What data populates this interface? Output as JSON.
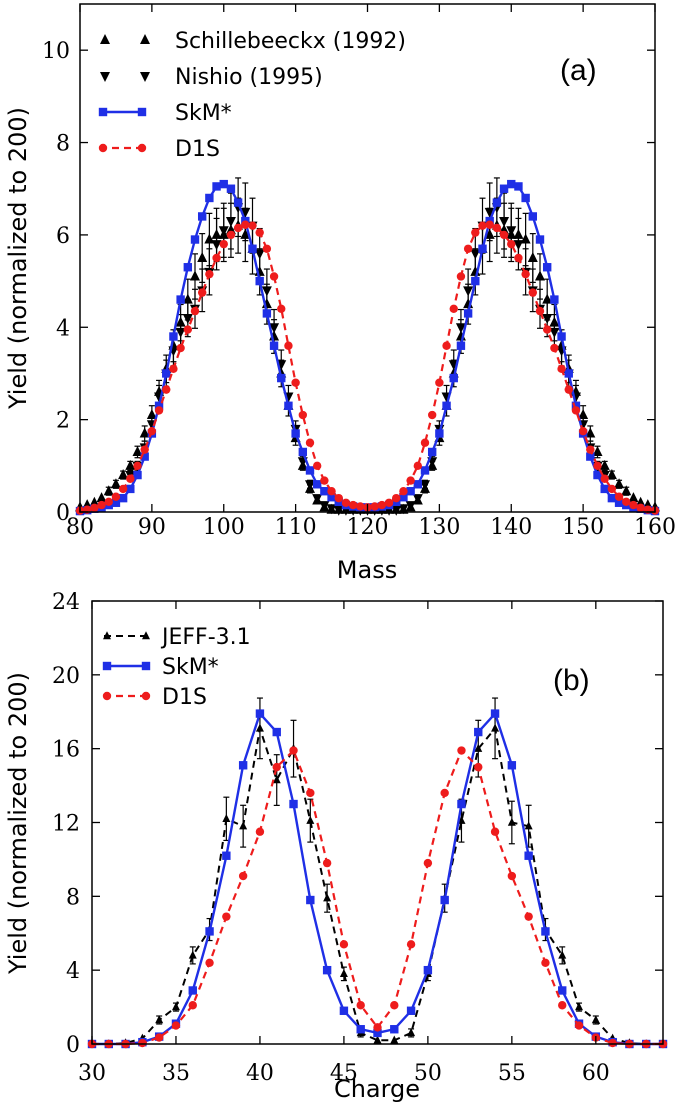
{
  "chart_data": [
    {
      "type": "line",
      "panel_label": "(a)",
      "xlabel": "Mass",
      "ylabel": "Yield (normalized to 200)",
      "xlim": [
        80,
        160
      ],
      "ylim": [
        0,
        11
      ],
      "xticks": [
        80,
        90,
        100,
        110,
        120,
        130,
        140,
        150,
        160
      ],
      "yticks": [
        0,
        2,
        4,
        6,
        8,
        10
      ],
      "x": [
        80,
        81,
        82,
        83,
        84,
        85,
        86,
        87,
        88,
        89,
        90,
        91,
        92,
        93,
        94,
        95,
        96,
        97,
        98,
        99,
        100,
        101,
        102,
        103,
        104,
        105,
        106,
        107,
        108,
        109,
        110,
        111,
        112,
        113,
        114,
        115,
        116,
        117,
        118,
        119,
        120,
        121,
        122,
        123,
        124,
        125,
        126,
        127,
        128,
        129,
        130,
        131,
        132,
        133,
        134,
        135,
        136,
        137,
        138,
        139,
        140,
        141,
        142,
        143,
        144,
        145,
        146,
        147,
        148,
        149,
        150,
        151,
        152,
        153,
        154,
        155,
        156,
        157,
        158,
        159,
        160
      ],
      "series": [
        {
          "name": "Schillebeeckx (1992)",
          "style": "black-up-triangle",
          "values": [
            0.1,
            0.15,
            0.2,
            0.3,
            0.45,
            0.6,
            0.8,
            1.0,
            1.3,
            1.7,
            2.1,
            2.6,
            3.1,
            3.6,
            4.1,
            4.6,
            5.1,
            5.5,
            5.9,
            6.0,
            6.0,
            6.1,
            6.2,
            6.0,
            5.7,
            5.2,
            4.5,
            3.8,
            3.0,
            2.3,
            1.6,
            1.0,
            0.5,
            0.25,
            0.1,
            0.05,
            0.05,
            0.05,
            0.05,
            0.05,
            0.05,
            0.05,
            0.05,
            0.05,
            0.05,
            0.05,
            0.1,
            0.25,
            0.5,
            1.0,
            1.6,
            2.3,
            3.0,
            3.8,
            4.5,
            5.2,
            5.7,
            6.0,
            6.2,
            6.1,
            6.0,
            6.0,
            5.9,
            5.5,
            5.1,
            4.6,
            4.1,
            3.6,
            3.1,
            2.6,
            2.1,
            1.7,
            1.3,
            1.0,
            0.8,
            0.6,
            0.45,
            0.3,
            0.2,
            0.15,
            0.1
          ]
        },
        {
          "name": "Nishio (1995)",
          "style": "black-down-triangle",
          "values": [
            null,
            null,
            null,
            null,
            null,
            null,
            null,
            0.8,
            1.0,
            1.4,
            1.9,
            2.5,
            3.0,
            3.5,
            3.9,
            4.2,
            4.4,
            4.8,
            5.2,
            5.8,
            6.1,
            6.3,
            6.6,
            6.5,
            6.2,
            5.6,
            4.8,
            4.0,
            3.2,
            2.5,
            1.8,
            1.1,
            0.6,
            0.3,
            0.15,
            0.08,
            0.05,
            0.05,
            0.05,
            0.05,
            0.05,
            0.05,
            0.05,
            0.05,
            0.05,
            0.08,
            0.15,
            0.3,
            0.6,
            1.1,
            1.8,
            2.5,
            3.2,
            4.0,
            4.8,
            5.6,
            6.2,
            6.5,
            6.6,
            6.3,
            6.1,
            5.8,
            5.2,
            4.8,
            4.4,
            4.2,
            3.9,
            3.5,
            3.0,
            2.5,
            1.9,
            1.4,
            1.0,
            0.8,
            null,
            null,
            null,
            null,
            null,
            null,
            null
          ]
        },
        {
          "name": "SkM*",
          "style": "blue-solid-square",
          "values": [
            0.02,
            0.04,
            0.07,
            0.1,
            0.15,
            0.2,
            0.3,
            0.5,
            0.8,
            1.2,
            1.7,
            2.3,
            3.0,
            3.8,
            4.6,
            5.3,
            5.9,
            6.4,
            6.8,
            7.05,
            7.1,
            7.0,
            6.7,
            6.3,
            5.7,
            5.0,
            4.3,
            3.6,
            2.9,
            2.3,
            1.7,
            1.3,
            0.9,
            0.6,
            0.45,
            0.32,
            0.22,
            0.15,
            0.12,
            0.1,
            0.1,
            0.1,
            0.12,
            0.15,
            0.22,
            0.32,
            0.45,
            0.6,
            0.9,
            1.3,
            1.7,
            2.3,
            2.9,
            3.6,
            4.3,
            5.0,
            5.7,
            6.3,
            6.7,
            7.0,
            7.1,
            7.05,
            6.8,
            6.4,
            5.9,
            5.3,
            4.6,
            3.8,
            3.0,
            2.3,
            1.7,
            1.2,
            0.8,
            0.5,
            0.3,
            0.2,
            0.15,
            0.1,
            0.07,
            0.04,
            0.02
          ]
        },
        {
          "name": "D1S",
          "style": "red-dashed-circle",
          "values": [
            0.03,
            0.05,
            0.09,
            0.15,
            0.22,
            0.33,
            0.5,
            0.72,
            1.0,
            1.35,
            1.75,
            2.2,
            2.65,
            3.1,
            3.55,
            3.95,
            4.35,
            4.75,
            5.15,
            5.5,
            5.8,
            6.0,
            6.15,
            6.22,
            6.2,
            6.05,
            5.7,
            5.1,
            4.4,
            3.6,
            2.8,
            2.1,
            1.5,
            1.0,
            0.68,
            0.45,
            0.3,
            0.2,
            0.15,
            0.12,
            0.1,
            0.12,
            0.15,
            0.2,
            0.3,
            0.45,
            0.68,
            1.0,
            1.5,
            2.1,
            2.8,
            3.6,
            4.4,
            5.1,
            5.7,
            6.05,
            6.2,
            6.22,
            6.15,
            6.0,
            5.8,
            5.5,
            5.15,
            4.75,
            4.35,
            3.95,
            3.55,
            3.1,
            2.65,
            2.2,
            1.75,
            1.35,
            1.0,
            0.72,
            0.5,
            0.33,
            0.22,
            0.15,
            0.09,
            0.05,
            0.03
          ]
        }
      ]
    },
    {
      "type": "line",
      "panel_label": "(b)",
      "xlabel": "Charge",
      "ylabel": "Yield (normalized to 200)",
      "xlim": [
        30,
        64
      ],
      "ylim": [
        0,
        24
      ],
      "xticks": [
        30,
        35,
        40,
        45,
        50,
        55,
        60
      ],
      "yticks": [
        0,
        4,
        8,
        12,
        16,
        20,
        24
      ],
      "x": [
        30,
        31,
        32,
        33,
        34,
        35,
        36,
        37,
        38,
        39,
        40,
        41,
        42,
        43,
        44,
        45,
        46,
        47,
        48,
        49,
        50,
        51,
        52,
        53,
        54,
        55,
        56,
        57,
        58,
        59,
        60,
        61,
        62,
        63,
        64
      ],
      "series": [
        {
          "name": "JEFF-3.1",
          "style": "black-dashed-triangle",
          "values": [
            0,
            0,
            0.05,
            0.3,
            1.3,
            2.0,
            4.8,
            6.2,
            12.2,
            11.8,
            17.1,
            14.3,
            16.0,
            12.1,
            7.9,
            3.8,
            0.6,
            0.2,
            0.2,
            0.6,
            3.8,
            7.9,
            12.1,
            16.0,
            17.1,
            12.0,
            11.8,
            6.2,
            4.8,
            2.0,
            1.3,
            0.3,
            0.05,
            0,
            0
          ]
        },
        {
          "name": "SkM*",
          "style": "blue-solid-square",
          "values": [
            0,
            0,
            0,
            0.1,
            0.4,
            1.1,
            2.9,
            6.1,
            10.2,
            15.1,
            17.9,
            16.9,
            13.0,
            7.8,
            4.0,
            1.8,
            0.8,
            0.6,
            0.8,
            1.8,
            4.0,
            7.8,
            13.0,
            16.9,
            17.9,
            15.1,
            10.2,
            6.1,
            2.9,
            1.1,
            0.4,
            0.1,
            0,
            0,
            0
          ]
        },
        {
          "name": "D1S",
          "style": "red-dashed-circle",
          "values": [
            0,
            0,
            0,
            0.05,
            0.35,
            1.0,
            2.1,
            4.4,
            6.9,
            9.1,
            11.5,
            15.0,
            15.9,
            13.6,
            9.8,
            5.4,
            2.1,
            0.9,
            2.1,
            5.4,
            9.8,
            13.6,
            15.9,
            15.0,
            11.5,
            9.1,
            6.9,
            4.4,
            2.1,
            1.0,
            0.35,
            0.05,
            0,
            0,
            0
          ]
        }
      ]
    }
  ]
}
